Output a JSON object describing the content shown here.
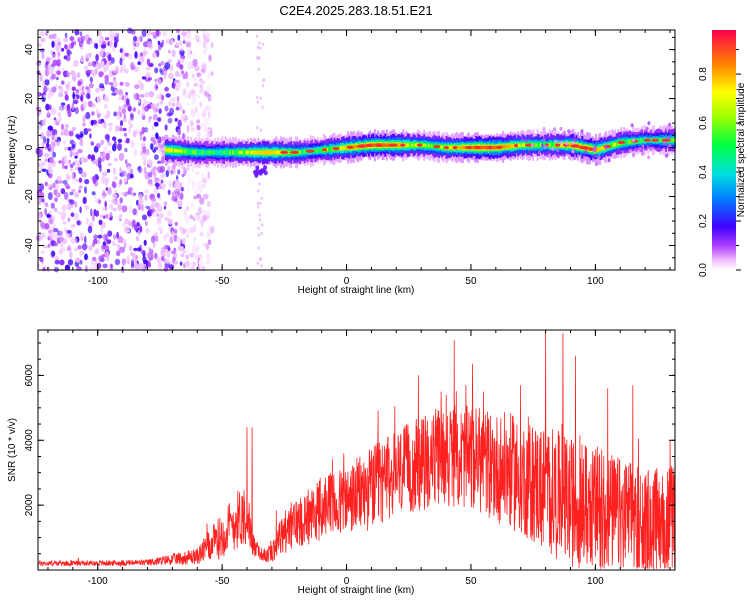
{
  "title": "C2E4.2025.283.18.51.E21",
  "chart_data": [
    {
      "type": "heatmap",
      "name": "spectrogram",
      "xlabel": "Height of straight line (km)",
      "ylabel": "Frequency (Hz)",
      "xlim": [
        -124,
        132
      ],
      "ylim": [
        -50,
        48
      ],
      "xticks": [
        -100,
        -50,
        0,
        50,
        100
      ],
      "yticks": [
        -40,
        -20,
        0,
        20,
        40
      ],
      "colorbar": {
        "label": "Normalized spectral amplitude",
        "range": [
          0.0,
          0.98
        ],
        "ticks": [
          "0.0",
          "0.2",
          "0.4",
          "0.6",
          "0.8"
        ],
        "tick_values": [
          0.0,
          0.2,
          0.4,
          0.6,
          0.8
        ]
      },
      "ridge": {
        "x": [
          -73,
          -60,
          -50,
          -40,
          -30,
          -20,
          -10,
          0,
          10,
          20,
          30,
          40,
          50,
          60,
          70,
          80,
          90,
          100,
          110,
          120,
          132
        ],
        "freq": [
          -1,
          -2,
          -2,
          -2,
          -2,
          -2,
          -1,
          0,
          1,
          1,
          1,
          0,
          0,
          0,
          1,
          1,
          1,
          -1,
          2,
          3,
          3
        ]
      },
      "noise_region": {
        "x_range": [
          -124,
          -60
        ],
        "description_values": "broadband low-amplitude noise"
      }
    },
    {
      "type": "line",
      "name": "snr",
      "xlabel": "Height of straight line (km)",
      "ylabel": "SNR (10 * v/v)",
      "xlim": [
        -124,
        132
      ],
      "ylim": [
        0,
        7400
      ],
      "xticks": [
        -100,
        -50,
        0,
        50,
        100
      ],
      "yticks": [
        2000,
        4000,
        6000
      ],
      "color": "#ff2020",
      "envelope": {
        "x": [
          -124,
          -100,
          -80,
          -60,
          -55,
          -50,
          -45,
          -40,
          -38,
          -35,
          -32,
          -30,
          -25,
          -20,
          -15,
          -10,
          -5,
          0,
          5,
          10,
          15,
          20,
          25,
          30,
          35,
          40,
          45,
          50,
          55,
          60,
          65,
          70,
          75,
          80,
          85,
          90,
          95,
          100,
          105,
          110,
          115,
          120,
          125,
          132
        ],
        "base": [
          200,
          200,
          220,
          400,
          700,
          1000,
          1400,
          1700,
          800,
          500,
          400,
          600,
          1100,
          1400,
          1600,
          1800,
          1900,
          2000,
          2200,
          2400,
          2600,
          2800,
          3000,
          3100,
          3300,
          3400,
          3300,
          3300,
          3200,
          3000,
          2900,
          2700,
          2500,
          2300,
          2100,
          1900,
          1800,
          1700,
          1600,
          1500,
          1400,
          1300,
          1300,
          1400
        ],
        "spread": [
          80,
          80,
          100,
          250,
          500,
          700,
          900,
          1000,
          400,
          200,
          200,
          400,
          700,
          800,
          900,
          1000,
          1100,
          1100,
          1200,
          1300,
          1300,
          1400,
          1400,
          1500,
          1500,
          1600,
          1600,
          1600,
          1700,
          1700,
          1800,
          1800,
          1900,
          2000,
          2000,
          2000,
          2000,
          1900,
          1900,
          1800,
          1800,
          1700,
          1700,
          1700
        ]
      },
      "peaks": [
        {
          "x": -40,
          "y": 4400
        },
        {
          "x": -38,
          "y": 4400
        },
        {
          "x": 30,
          "y": 4200
        },
        {
          "x": 38,
          "y": 5500
        },
        {
          "x": 40,
          "y": 5400
        },
        {
          "x": 48,
          "y": 5700
        },
        {
          "x": 55,
          "y": 5500
        },
        {
          "x": 80,
          "y": 7400
        },
        {
          "x": 87,
          "y": 7300
        },
        {
          "x": 92,
          "y": 6600
        },
        {
          "x": 105,
          "y": 5600
        },
        {
          "x": 115,
          "y": 5700
        },
        {
          "x": 130,
          "y": 4000
        }
      ]
    }
  ]
}
